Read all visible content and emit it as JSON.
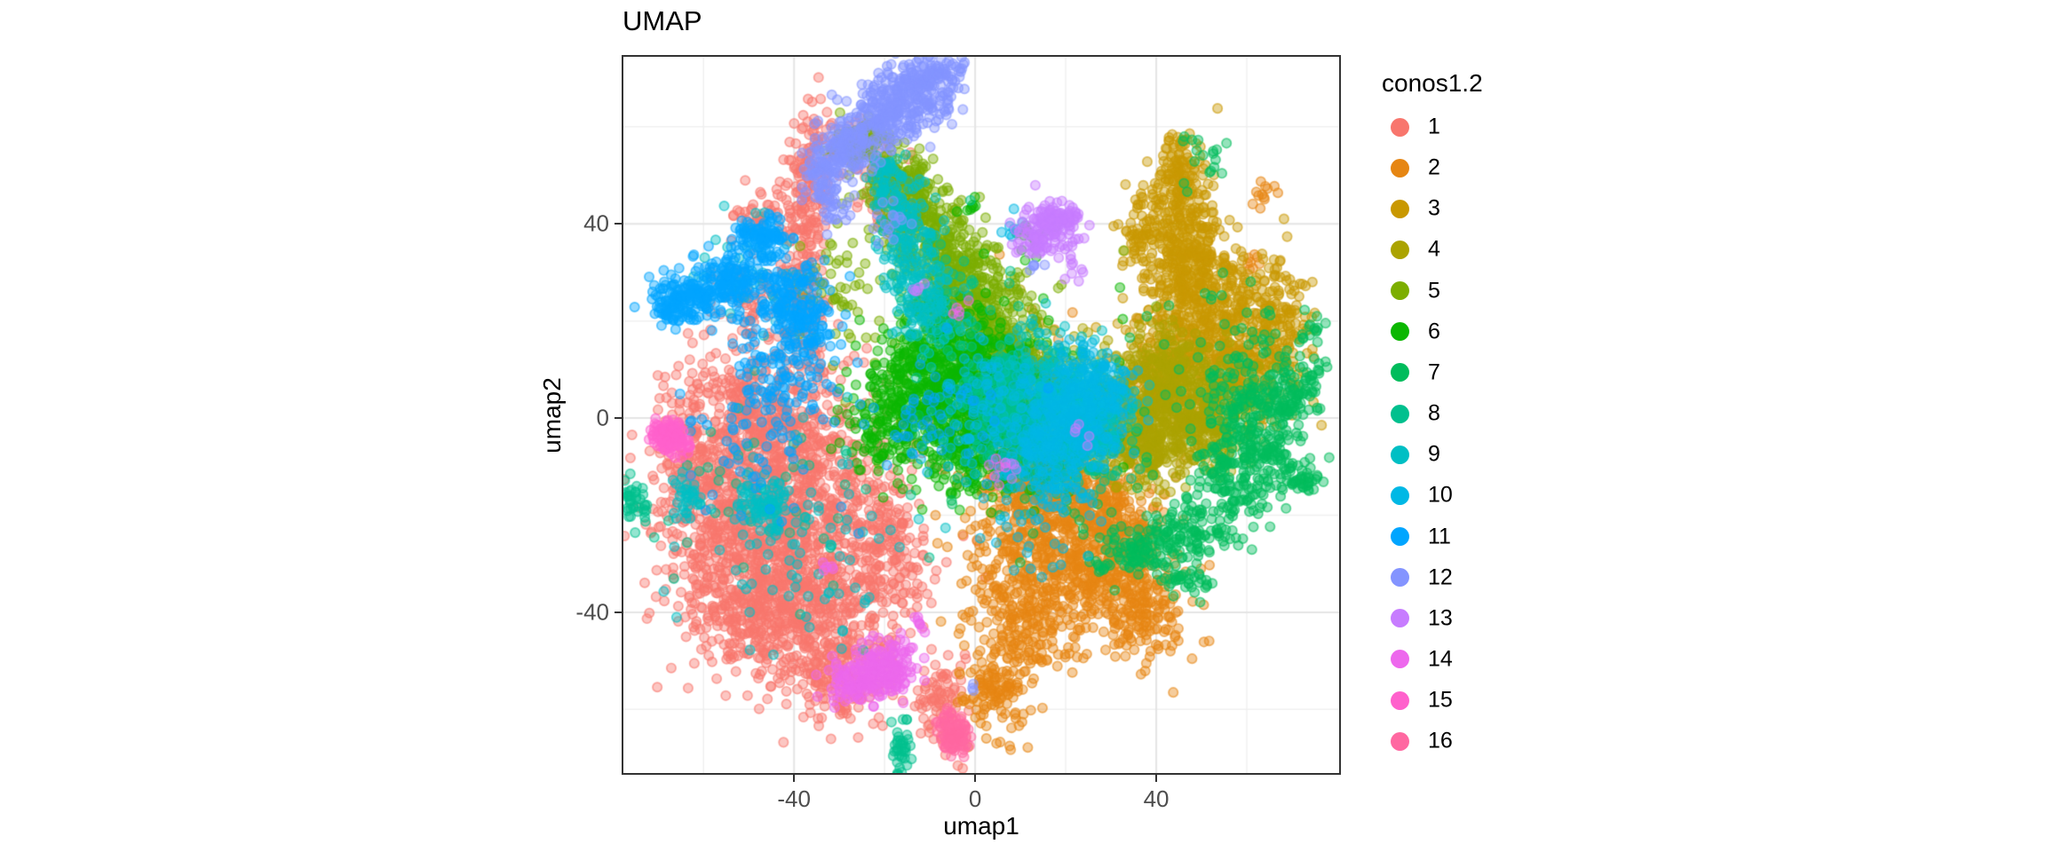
{
  "title": "UMAP",
  "axes": {
    "x": {
      "label": "umap1",
      "major_ticks": [
        -40,
        0,
        40
      ],
      "minor_ticks": [
        -60,
        -20,
        20,
        60
      ],
      "domain": [
        -77.7,
        80.4
      ]
    },
    "y": {
      "label": "umap2",
      "major_ticks": [
        40,
        0,
        -40
      ],
      "minor_ticks": [
        60,
        20,
        -20,
        -60
      ],
      "domain": [
        -73.1,
        74.4
      ]
    }
  },
  "legend": {
    "title": "conos1.2",
    "items": [
      {
        "label": "1",
        "color": "#F8766D"
      },
      {
        "label": "2",
        "color": "#E68613"
      },
      {
        "label": "3",
        "color": "#C99800"
      },
      {
        "label": "4",
        "color": "#ABA300"
      },
      {
        "label": "5",
        "color": "#7CAE00"
      },
      {
        "label": "6",
        "color": "#0CB702"
      },
      {
        "label": "7",
        "color": "#00BC5C"
      },
      {
        "label": "8",
        "color": "#00C08E"
      },
      {
        "label": "9",
        "color": "#00BFC4"
      },
      {
        "label": "10",
        "color": "#00B8E5"
      },
      {
        "label": "11",
        "color": "#00A5FF"
      },
      {
        "label": "12",
        "color": "#8494FF"
      },
      {
        "label": "13",
        "color": "#C77CFF"
      },
      {
        "label": "14",
        "color": "#ED68ED"
      },
      {
        "label": "15",
        "color": "#FF61CC"
      },
      {
        "label": "16",
        "color": "#FF68A1"
      }
    ]
  },
  "style": {
    "background": "#FFFFFF",
    "panel_border_color": "#333333",
    "tick_label_color": "#4D4D4D",
    "grid_major_color": "#E4E4E4",
    "grid_minor_color": "#F0F0F0"
  },
  "chart_data": {
    "type": "scatter",
    "title": "UMAP",
    "xlabel": "umap1",
    "ylabel": "umap2",
    "xlim": [
      -77.7,
      80.4
    ],
    "ylim": [
      -73.1,
      74.4
    ],
    "x_major_ticks": [
      -40,
      0,
      40
    ],
    "x_minor_ticks": [
      -60,
      -20,
      20,
      60
    ],
    "y_major_ticks": [
      40,
      0,
      -40
    ],
    "y_minor_ticks": [
      60,
      20,
      -20,
      -60
    ],
    "grid": true,
    "legend_title": "conos1.2",
    "legend_position": "right",
    "point_style": {
      "radius": 5.2,
      "fill_alpha": 0.42,
      "stroke_alpha": 0.6,
      "stroke_width": 1.7
    },
    "seed": 12,
    "series": [
      {
        "name": "1",
        "color": "#F8766D",
        "blobs": [
          [
            -48.4,
            0.2,
            8.8,
            7.3,
            480
          ],
          [
            -36.7,
            -16.2,
            9.8,
            9.1,
            520
          ],
          [
            -52.3,
            -25.3,
            7.8,
            8.2,
            380
          ],
          [
            -34.7,
            -38.0,
            8.8,
            7.3,
            350
          ],
          [
            -48.4,
            -41.6,
            6.8,
            6.4,
            250
          ],
          [
            -28.9,
            -52.5,
            5.9,
            5.5,
            200
          ],
          [
            -19.1,
            -27.1,
            4.9,
            7.3,
            150
          ],
          [
            -62.0,
            -10.7,
            4.9,
            4.5,
            120
          ],
          [
            -36.3,
            52.9,
            2.7,
            5.5,
            90
          ],
          [
            -37.7,
            38.4,
            2.5,
            6.4,
            100
          ],
          [
            -38.6,
            22.0,
            2.9,
            6.4,
            110
          ],
          [
            -49.4,
            25.6,
            4.3,
            3.6,
            70
          ],
          [
            -46.4,
            42.0,
            2.9,
            2.7,
            40
          ],
          [
            -26.9,
            54.7,
            4.9,
            4.5,
            60
          ],
          [
            -19.1,
            43.8,
            3.9,
            4.5,
            50
          ],
          [
            -7.4,
            -58.0,
            2.7,
            5.1,
            90
          ],
          [
            -38.6,
            -19.8,
            17.6,
            16.4,
            120
          ]
        ]
      },
      {
        "name": "2",
        "color": "#E68613",
        "blobs": [
          [
            17.0,
            -25.3,
            8.8,
            8.2,
            400
          ],
          [
            30.6,
            -34.4,
            7.8,
            6.4,
            280
          ],
          [
            10.1,
            -41.6,
            5.9,
            7.3,
            220
          ],
          [
            4.3,
            -56.2,
            3.5,
            4.5,
            110
          ],
          [
            25.8,
            -16.2,
            6.8,
            5.5,
            200
          ],
          [
            12.1,
            -13.5,
            5.9,
            4.5,
            150
          ],
          [
            37.5,
            -41.6,
            4.3,
            4.5,
            90
          ],
          [
            33.6,
            -25.3,
            3.9,
            3.6,
            80
          ],
          [
            64.8,
            45.6,
            2.0,
            2.0,
            12
          ],
          [
            60.9,
            32.9,
            1.6,
            1.6,
            8
          ],
          [
            10.1,
            3.8,
            11.7,
            10.9,
            60
          ]
        ]
      },
      {
        "name": "3",
        "color": "#C99800",
        "blobs": [
          [
            45.3,
            45.6,
            3.3,
            5.5,
            200
          ],
          [
            47.2,
            32.9,
            4.9,
            4.5,
            220
          ],
          [
            51.1,
            20.2,
            7.4,
            6.4,
            400
          ],
          [
            58.9,
            9.3,
            6.8,
            5.5,
            260
          ],
          [
            43.3,
            9.3,
            5.5,
            5.1,
            180
          ],
          [
            66.7,
            22.0,
            4.3,
            5.1,
            120
          ],
          [
            36.5,
            38.4,
            2.0,
            5.1,
            70
          ],
          [
            45.3,
            56.5,
            2.3,
            1.5,
            15
          ],
          [
            39.4,
            2.0,
            8.8,
            6.4,
            90
          ]
        ]
      },
      {
        "name": "4",
        "color": "#ABA300",
        "blobs": [
          [
            42.3,
            2.9,
            7.8,
            5.1,
            330
          ],
          [
            31.6,
            -1.6,
            5.9,
            4.5,
            180
          ],
          [
            51.1,
            -3.5,
            4.9,
            4.0,
            130
          ],
          [
            39.4,
            -7.1,
            5.9,
            3.6,
            120
          ],
          [
            43.3,
            11.1,
            4.9,
            3.6,
            110
          ],
          [
            16.0,
            7.5,
            9.8,
            7.3,
            70
          ]
        ]
      },
      {
        "name": "5",
        "color": "#7CAE00",
        "blobs": [
          [
            -25.0,
            57.5,
            3.5,
            2.5,
            70
          ],
          [
            -17.2,
            49.3,
            4.3,
            3.6,
            130
          ],
          [
            -11.3,
            40.2,
            4.9,
            4.5,
            180
          ],
          [
            -5.5,
            31.1,
            5.5,
            4.5,
            200
          ],
          [
            0.4,
            23.8,
            5.5,
            4.5,
            180
          ],
          [
            6.2,
            15.6,
            4.9,
            4.5,
            150
          ],
          [
            12.1,
            9.3,
            3.9,
            4.0,
            100
          ],
          [
            -3.5,
            9.3,
            11.7,
            9.1,
            120
          ],
          [
            -30.8,
            27.5,
            3.5,
            4.5,
            40
          ]
        ]
      },
      {
        "name": "6",
        "color": "#0CB702",
        "blobs": [
          [
            -7.4,
            12.9,
            6.8,
            5.5,
            280
          ],
          [
            0.4,
            5.6,
            6.8,
            5.5,
            250
          ],
          [
            -13.3,
            3.8,
            5.5,
            5.5,
            180
          ],
          [
            6.2,
            -3.5,
            5.9,
            5.1,
            170
          ],
          [
            -3.5,
            -7.1,
            5.9,
            4.5,
            130
          ],
          [
            -21.1,
            -3.5,
            3.9,
            4.5,
            80
          ],
          [
            13.1,
            36.5,
            2.0,
            2.2,
            15
          ],
          [
            -1.6,
            42.9,
            1.6,
            1.5,
            8
          ],
          [
            0.4,
            3.8,
            15.6,
            10.9,
            100
          ]
        ]
      },
      {
        "name": "7",
        "color": "#00BC5C",
        "blobs": [
          [
            62.8,
            -1.6,
            5.9,
            6.4,
            250
          ],
          [
            57.0,
            -12.5,
            4.9,
            5.1,
            140
          ],
          [
            45.3,
            -23.5,
            5.9,
            3.3,
            120
          ],
          [
            33.6,
            -28.0,
            4.9,
            2.7,
            90
          ],
          [
            70.6,
            5.6,
            3.5,
            3.6,
            80
          ],
          [
            71.4,
            -12.5,
            2.3,
            1.3,
            40
          ],
          [
            46.6,
            -33.6,
            2.9,
            1.6,
            35
          ],
          [
            74.5,
            17.5,
            1.6,
            1.5,
            14
          ],
          [
            49.2,
            52.9,
            2.9,
            3.6,
            18
          ],
          [
            55.0,
            12.9,
            9.8,
            7.3,
            70
          ],
          [
            19.9,
            -8.9,
            11.7,
            7.3,
            80
          ]
        ]
      },
      {
        "name": "8",
        "color": "#00C08E",
        "blobs": [
          [
            14.0,
            0.2,
            6.8,
            5.5,
            260
          ],
          [
            6.2,
            5.6,
            4.9,
            4.5,
            140
          ],
          [
            21.9,
            -5.3,
            5.5,
            4.5,
            140
          ],
          [
            -75.3,
            -17.3,
            1.4,
            2.0,
            40
          ],
          [
            -16.4,
            -68.0,
            1.2,
            3.3,
            40
          ],
          [
            -42.5,
            -16.2,
            11.7,
            10.9,
            50
          ],
          [
            -7.4,
            25.6,
            5.9,
            7.3,
            60
          ]
        ]
      },
      {
        "name": "9",
        "color": "#00BFC4",
        "blobs": [
          [
            -19.1,
            49.3,
            2.7,
            3.3,
            60
          ],
          [
            -16.2,
            41.1,
            3.1,
            4.0,
            80
          ],
          [
            -13.3,
            31.1,
            3.5,
            4.5,
            90
          ],
          [
            -10.3,
            22.0,
            3.5,
            4.0,
            80
          ],
          [
            16.0,
            7.5,
            6.8,
            5.5,
            180
          ],
          [
            25.8,
            0.2,
            5.9,
            5.1,
            140
          ],
          [
            -46.8,
            -18.0,
            3.5,
            3.6,
            90
          ],
          [
            -63.6,
            -16.2,
            1.6,
            2.4,
            35
          ],
          [
            -38.6,
            -27.1,
            13.7,
            12.7,
            70
          ],
          [
            -48.4,
            31.1,
            5.9,
            5.5,
            30
          ]
        ]
      },
      {
        "name": "10",
        "color": "#00B8E5",
        "blobs": [
          [
            20.9,
            0.2,
            5.5,
            5.5,
            230
          ],
          [
            16.0,
            -7.1,
            4.9,
            4.5,
            130
          ],
          [
            26.7,
            7.5,
            3.9,
            4.0,
            100
          ],
          [
            2.3,
            0.2,
            8.8,
            7.3,
            110
          ],
          [
            14.0,
            -21.6,
            4.9,
            5.5,
            40
          ],
          [
            8.2,
            40.2,
            2.0,
            1.8,
            8
          ],
          [
            -44.0,
            23.0,
            2.0,
            2.0,
            6
          ]
        ]
      },
      {
        "name": "11",
        "color": "#00A5FF",
        "blobs": [
          [
            -47.4,
            37.1,
            2.7,
            2.2,
            110
          ],
          [
            -61.1,
            25.6,
            4.9,
            2.5,
            150
          ],
          [
            -65.9,
            22.9,
            2.7,
            2.2,
            70
          ],
          [
            -53.3,
            28.4,
            3.5,
            2.7,
            90
          ],
          [
            -41.6,
            25.6,
            4.9,
            3.6,
            130
          ],
          [
            -37.7,
            18.4,
            3.5,
            3.6,
            90
          ],
          [
            -42.5,
            7.5,
            4.9,
            5.5,
            90
          ],
          [
            -46.4,
            -5.3,
            9.8,
            9.1,
            60
          ],
          [
            -9.4,
            0.2,
            7.8,
            7.3,
            40
          ]
        ]
      },
      {
        "name": "12",
        "color": "#8494FF",
        "blobs": [
          [
            -13.3,
            66.5,
            4.9,
            3.3,
            220
          ],
          [
            -22.0,
            61.1,
            4.3,
            3.3,
            150
          ],
          [
            -28.9,
            55.6,
            3.5,
            2.7,
            100
          ],
          [
            -33.8,
            50.2,
            2.5,
            2.4,
            60
          ],
          [
            -31.8,
            43.8,
            2.0,
            2.7,
            35
          ],
          [
            -8.4,
            71.1,
            2.9,
            1.8,
            60
          ],
          [
            -19.1,
            38.4,
            2.9,
            3.6,
            15
          ],
          [
            13.1,
            31.1,
            1.0,
            1.0,
            5
          ],
          [
            0.0,
            -56.0,
            1.0,
            1.0,
            3
          ]
        ]
      },
      {
        "name": "13",
        "color": "#C77CFF",
        "blobs": [
          [
            17.0,
            39.8,
            3.1,
            2.5,
            140
          ],
          [
            13.1,
            36.5,
            2.0,
            1.8,
            40
          ],
          [
            22.8,
            31.1,
            1.6,
            1.5,
            8
          ],
          [
            -12.3,
            26.5,
            1.2,
            1.1,
            5
          ],
          [
            8.2,
            -8.9,
            1.6,
            1.5,
            6
          ],
          [
            22.8,
            -3.5,
            1.2,
            1.1,
            5
          ]
        ]
      },
      {
        "name": "14",
        "color": "#ED68ED",
        "blobs": [
          [
            -22.4,
            -52.9,
            4.3,
            2.9,
            170
          ],
          [
            -17.6,
            -49.8,
            2.7,
            2.2,
            50
          ],
          [
            -27.9,
            -55.3,
            2.3,
            1.8,
            35
          ],
          [
            -12.3,
            -41.6,
            1.6,
            1.5,
            8
          ],
          [
            4.3,
            -10.7,
            1.6,
            1.5,
            6
          ],
          [
            -3.5,
            22.0,
            1.2,
            1.1,
            5
          ],
          [
            -31.8,
            -30.7,
            1.2,
            1.1,
            5
          ]
        ]
      },
      {
        "name": "15",
        "color": "#FF61CC",
        "blobs": [
          [
            -68.1,
            -3.3,
            2.0,
            1.6,
            100
          ],
          [
            -65.0,
            -5.3,
            1.2,
            1.1,
            20
          ]
        ]
      },
      {
        "name": "16",
        "color": "#FF68A1",
        "blobs": [
          [
            -4.3,
            -65.6,
            1.6,
            1.5,
            95
          ],
          [
            -5.9,
            -62.5,
            1.2,
            1.5,
            25
          ]
        ]
      }
    ]
  }
}
